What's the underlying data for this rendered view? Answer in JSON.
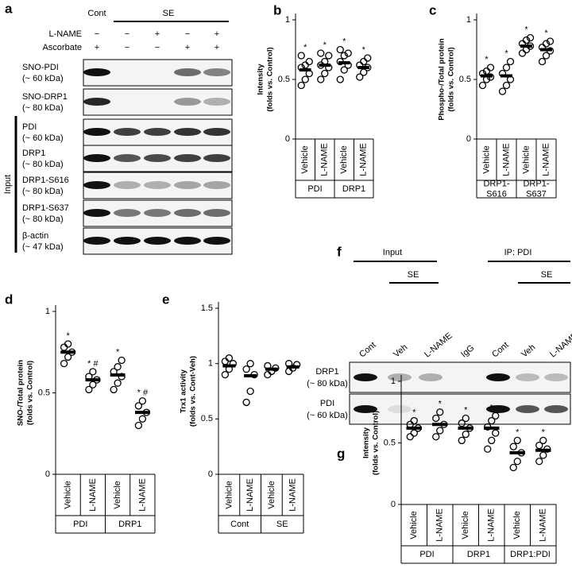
{
  "panel_a": {
    "label": "a",
    "cont": "Cont",
    "se": "SE",
    "input_label": "Input",
    "conditions": [
      {
        "name": "L-NAME",
        "signs": [
          "−",
          "−",
          "+",
          "−",
          "+"
        ]
      },
      {
        "name": "Ascorbate",
        "signs": [
          "+",
          "−",
          "−",
          "+",
          "+"
        ]
      }
    ],
    "blots": [
      {
        "name": "SNO-PDI",
        "size": "(~ 60 kDa)"
      },
      {
        "name": "SNO-DRP1",
        "size": "(~ 80 kDa)"
      },
      {
        "name": "PDI",
        "size": "(~ 60 kDa)"
      },
      {
        "name": "DRP1",
        "size": "(~ 80 kDa)"
      },
      {
        "name": "DRP1-S616",
        "size": "(~ 80 kDa)"
      },
      {
        "name": "DRP1-S637",
        "size": "(~ 80 kDa)"
      },
      {
        "name": "β-actin",
        "size": "(~ 47 kDa)"
      }
    ]
  },
  "panel_f": {
    "label": "f",
    "input": "Input",
    "se": "SE",
    "ip": "IP: PDI",
    "lanes": [
      "Cont",
      "Veh",
      "L-NAME",
      "IgG",
      "Cont",
      "Veh",
      "L-NAME"
    ],
    "blots": [
      {
        "name": "DRP1",
        "size": "(~ 80 kDa)"
      },
      {
        "name": "PDI",
        "size": "(~ 60 kDa)"
      }
    ]
  },
  "chart_data": [
    {
      "type": "dot",
      "panel": "b",
      "ylabel": [
        "Intensity",
        "(folds vs. Control)"
      ],
      "ylim": [
        0,
        1
      ],
      "yticks": [
        0,
        0.5,
        1
      ],
      "categories": [
        "Vehicle",
        "L-NAME",
        "Vehicle",
        "L-NAME"
      ],
      "groups": [
        [
          "PDI"
        ],
        [
          "DRP1"
        ]
      ],
      "values": [
        0.58,
        0.62,
        0.64,
        0.6
      ],
      "annotations": [
        "*",
        "*",
        "*",
        "*"
      ],
      "points": [
        [
          0.45,
          0.5,
          0.55,
          0.6,
          0.62,
          0.65,
          0.7
        ],
        [
          0.5,
          0.55,
          0.6,
          0.62,
          0.65,
          0.7,
          0.72
        ],
        [
          0.5,
          0.58,
          0.62,
          0.65,
          0.7,
          0.72,
          0.75
        ],
        [
          0.52,
          0.56,
          0.6,
          0.62,
          0.65,
          0.68
        ]
      ]
    },
    {
      "type": "dot",
      "panel": "c",
      "ylabel": [
        "Phospho-/Total protein",
        "(folds vs. Control)"
      ],
      "ylim": [
        0,
        1
      ],
      "yticks": [
        0,
        0.5,
        1
      ],
      "categories": [
        "Vehicle",
        "L-NAME",
        "Vehicle",
        "L-NAME"
      ],
      "groups": [
        [
          "DRP1-",
          "S616"
        ],
        [
          "DRP1-",
          "S637"
        ]
      ],
      "values": [
        0.53,
        0.53,
        0.78,
        0.75
      ],
      "annotations": [
        "*",
        "*",
        "*",
        "*"
      ],
      "points": [
        [
          0.45,
          0.5,
          0.52,
          0.55,
          0.57,
          0.6
        ],
        [
          0.4,
          0.45,
          0.5,
          0.55,
          0.6,
          0.65
        ],
        [
          0.72,
          0.75,
          0.78,
          0.8,
          0.83,
          0.85
        ],
        [
          0.65,
          0.7,
          0.74,
          0.77,
          0.8,
          0.82
        ]
      ]
    },
    {
      "type": "dot",
      "panel": "d",
      "ylabel": [
        "SNO-/Total protein",
        "(folds vs. Control)"
      ],
      "ylim": [
        0,
        1
      ],
      "yticks": [
        0,
        0.5,
        1
      ],
      "categories": [
        "Vehicle",
        "L-NAME",
        "Vehicle",
        "L-NAME"
      ],
      "groups": [
        [
          "PDI"
        ],
        [
          "DRP1"
        ]
      ],
      "values": [
        0.75,
        0.58,
        0.61,
        0.38
      ],
      "annotations": [
        "*",
        "* #",
        "*",
        "* #"
      ],
      "points": [
        [
          0.68,
          0.72,
          0.75,
          0.78,
          0.8
        ],
        [
          0.52,
          0.55,
          0.58,
          0.6,
          0.63
        ],
        [
          0.52,
          0.56,
          0.6,
          0.63,
          0.66,
          0.7
        ],
        [
          0.3,
          0.34,
          0.38,
          0.42,
          0.45
        ]
      ]
    },
    {
      "type": "dot",
      "panel": "e",
      "ylabel": [
        "Trx1 activity",
        "(folds vs. Cont-Veh)"
      ],
      "ylim": [
        0,
        1.5
      ],
      "yticks": [
        0,
        0.5,
        1,
        1.5
      ],
      "categories": [
        "Vehicle",
        "L-NAME",
        "Vehicle",
        "L-NAME"
      ],
      "groups": [
        [
          "Cont"
        ],
        [
          "SE"
        ]
      ],
      "values": [
        0.98,
        0.89,
        0.95,
        0.97
      ],
      "points": [
        [
          0.9,
          0.95,
          1.0,
          1.02,
          1.05
        ],
        [
          0.65,
          0.75,
          0.9,
          0.95,
          1.0
        ],
        [
          0.9,
          0.93,
          0.96,
          0.98
        ],
        [
          0.93,
          0.96,
          0.99,
          1.0
        ]
      ]
    },
    {
      "type": "dot",
      "panel": "g",
      "ylabel": [
        "Intensity",
        "(folds vs. Control)"
      ],
      "ylim": [
        0,
        1
      ],
      "yticks": [
        0,
        0.5,
        1
      ],
      "categories": [
        "Vehicle",
        "L-NAME",
        "Vehicle",
        "L-NAME",
        "Vehicle",
        "L-NAME"
      ],
      "groups": [
        [
          "PDI"
        ],
        [
          "DRP1"
        ],
        [
          "DRP1:PDI"
        ]
      ],
      "values": [
        0.62,
        0.65,
        0.62,
        0.62,
        0.42,
        0.44
      ],
      "annotations": [
        "*",
        "*",
        "*",
        "*",
        "*",
        "*"
      ],
      "points": [
        [
          0.55,
          0.58,
          0.62,
          0.65,
          0.68
        ],
        [
          0.55,
          0.6,
          0.65,
          0.7,
          0.75
        ],
        [
          0.52,
          0.57,
          0.62,
          0.66,
          0.7
        ],
        [
          0.45,
          0.52,
          0.58,
          0.63,
          0.68,
          0.72
        ],
        [
          0.3,
          0.35,
          0.42,
          0.47,
          0.52
        ],
        [
          0.35,
          0.4,
          0.45,
          0.48,
          0.52
        ]
      ]
    }
  ]
}
